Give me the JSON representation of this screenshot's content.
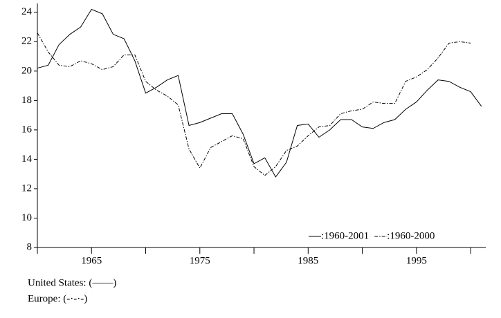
{
  "chart_data": {
    "type": "line",
    "x": [
      1960,
      1961,
      1962,
      1963,
      1964,
      1965,
      1966,
      1967,
      1968,
      1969,
      1970,
      1971,
      1972,
      1973,
      1974,
      1975,
      1976,
      1977,
      1978,
      1979,
      1980,
      1981,
      1982,
      1983,
      1984,
      1985,
      1986,
      1987,
      1988,
      1989,
      1990,
      1991,
      1992,
      1993,
      1994,
      1995,
      1996,
      1997,
      1998,
      1999,
      2000,
      2001
    ],
    "xlim": [
      1960,
      2001.4
    ],
    "xticks": [
      1965,
      1975,
      1985,
      1995
    ],
    "xminor": [
      1960,
      1970,
      1980,
      1990,
      2000
    ],
    "ylim": [
      8,
      24.6
    ],
    "yticks": [
      8,
      10,
      12,
      14,
      16,
      18,
      20,
      22,
      24
    ],
    "series": [
      {
        "name": "United States",
        "label": ":1960-2001",
        "color": "#000000",
        "dash": "none",
        "values": [
          20.2,
          20.4,
          21.8,
          22.5,
          23.0,
          24.2,
          23.9,
          22.5,
          22.2,
          20.7,
          18.5,
          18.9,
          19.4,
          19.7,
          16.3,
          16.5,
          16.8,
          17.1,
          17.1,
          15.7,
          13.7,
          14.1,
          12.8,
          13.8,
          16.3,
          16.4,
          15.5,
          16.0,
          16.7,
          16.7,
          16.2,
          16.1,
          16.5,
          16.7,
          17.4,
          17.9,
          18.7,
          19.4,
          19.3,
          18.9,
          18.6,
          17.6
        ]
      },
      {
        "name": "Europe",
        "label": ":1960-2000",
        "color": "#000000",
        "dash": "5,2,1.5,2",
        "values": [
          22.6,
          21.3,
          20.4,
          20.3,
          20.7,
          20.5,
          20.1,
          20.3,
          21.1,
          21.1,
          19.3,
          18.7,
          18.3,
          17.7,
          14.7,
          13.4,
          14.8,
          15.2,
          15.6,
          15.4,
          13.5,
          12.9,
          13.5,
          14.6,
          14.9,
          15.6,
          16.2,
          16.3,
          17.1,
          17.3,
          17.4,
          17.9,
          17.8,
          17.8,
          19.3,
          19.6,
          20.1,
          20.9,
          21.9,
          22.0,
          21.9,
          null
        ]
      }
    ],
    "notes": [
      "United States: (——)",
      "Europe: (-·-·-)"
    ]
  }
}
